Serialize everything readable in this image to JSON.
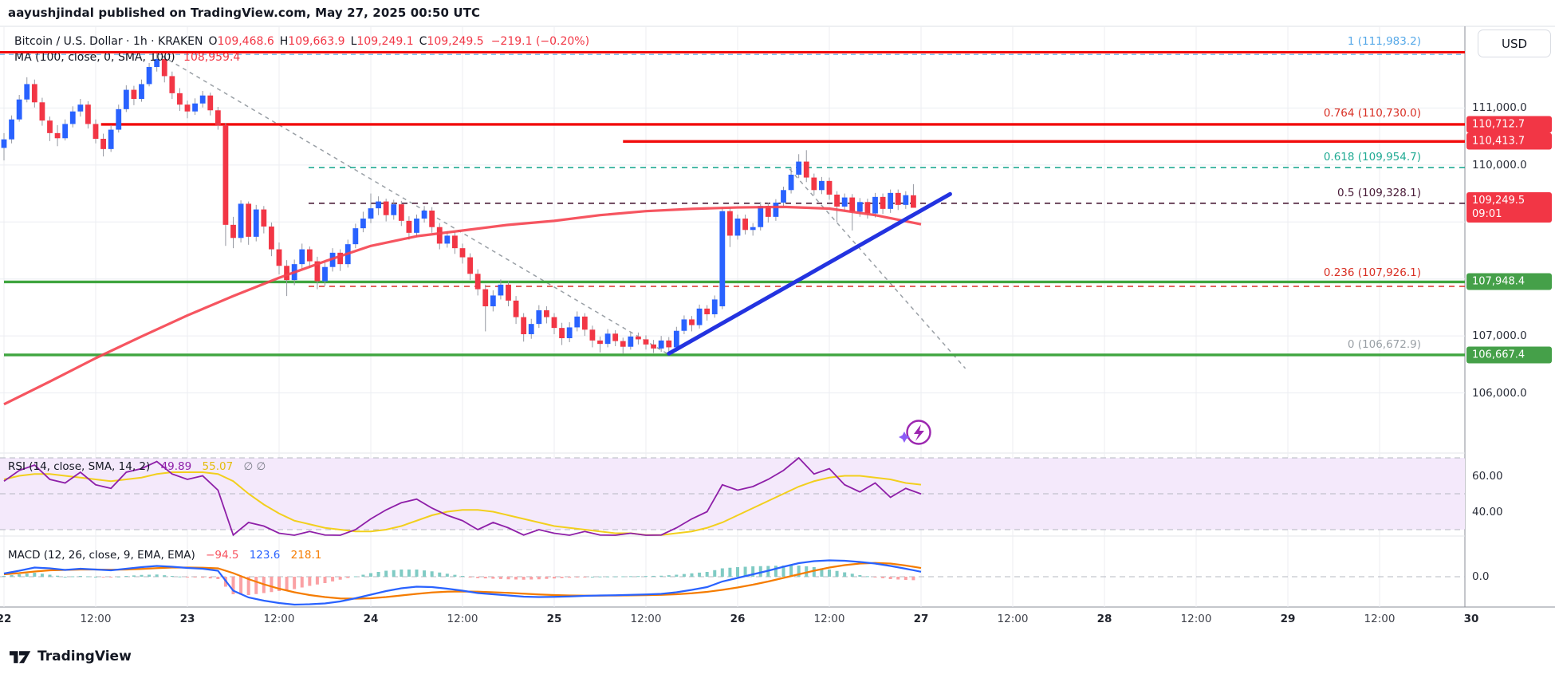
{
  "byline": "aayushjindal published on TradingView.com, May 27, 2025 00:50 UTC",
  "header": {
    "symbol_title": "Bitcoin / U.S. Dollar · 1h · KRAKEN",
    "ohlc": [
      {
        "k": "O",
        "v": "109,468.6"
      },
      {
        "k": "H",
        "v": "109,663.9"
      },
      {
        "k": "L",
        "v": "109,249.1"
      },
      {
        "k": "C",
        "v": "109,249.5"
      }
    ],
    "change": "−219.1 (−0.20%)",
    "ma_label": "MA (100, close, 0, SMA, 100)",
    "ma_value": "108,959.4"
  },
  "currency_button": "USD",
  "logo_text": "TradingView",
  "colors": {
    "up_candle": "#2962ff",
    "down_candle": "#f23645",
    "wick": "#9598a1",
    "ma_line": "#f5434f",
    "ray_red": "#f20c0c",
    "ray_green": "#3fa53f",
    "fib_teal": "#22ab94",
    "fib_dark": "#4a1c38",
    "fib_red_dash": "#d93025",
    "fib_blue_label": "#55a8e8",
    "fib_gray_label": "#9aa0a6",
    "trendline_blue": "#2333e0",
    "rsi_purple": "#8e1fa8",
    "rsi_yellow": "#f2cf1d",
    "rsi_band_fill": "#f4e9fb",
    "macd_blue": "#2962ff",
    "macd_orange": "#f57c00",
    "hist_pos": "#80cbc4",
    "hist_neg": "#faa1a4",
    "badge_red": "#f23645",
    "badge_green": "#45a049",
    "grid": "#eceef2"
  },
  "fib_labels": [
    {
      "text": "1 (111,983.2)",
      "price": 111983.2,
      "color": "#55a8e8"
    },
    {
      "text": "0.764 (110,730.0)",
      "price": 110730.0,
      "color": "#d93025"
    },
    {
      "text": "0.618 (109,954.7)",
      "price": 109954.7,
      "color": "#22ab94"
    },
    {
      "text": "0.5 (109,328.1)",
      "price": 109328.1,
      "color": "#4a1c38"
    },
    {
      "text": "0.236 (107,926.1)",
      "price": 107926.1,
      "color": "#d93025"
    },
    {
      "text": "0 (106,672.9)",
      "price": 106672.9,
      "color": "#9aa0a6"
    }
  ],
  "price_badges": [
    {
      "lines": [
        "110,712.7"
      ],
      "price": 110712.7,
      "bg": "#f23645"
    },
    {
      "lines": [
        "110,413.7"
      ],
      "price": 110413.7,
      "bg": "#f23645"
    },
    {
      "lines": [
        "109,249.5",
        "09:01"
      ],
      "price": 109249.5,
      "bg": "#f23645"
    },
    {
      "lines": [
        "107,948.4"
      ],
      "price": 107948.4,
      "bg": "#45a049"
    },
    {
      "lines": [
        "106,667.4"
      ],
      "price": 106667.4,
      "bg": "#45a049"
    }
  ],
  "y_axis_labels": [
    {
      "text": "111,000.0",
      "price": 111000
    },
    {
      "text": "110,000.0",
      "price": 110000
    },
    {
      "text": "107,000.0",
      "price": 107000
    },
    {
      "text": "106,000.0",
      "price": 106000
    }
  ],
  "timeline": [
    {
      "label": "22",
      "hour": 0,
      "day": true
    },
    {
      "label": "12:00",
      "hour": 12,
      "day": false
    },
    {
      "label": "23",
      "hour": 24,
      "day": true
    },
    {
      "label": "12:00",
      "hour": 36,
      "day": false
    },
    {
      "label": "24",
      "hour": 48,
      "day": true
    },
    {
      "label": "12:00",
      "hour": 60,
      "day": false
    },
    {
      "label": "25",
      "hour": 72,
      "day": true
    },
    {
      "label": "12:00",
      "hour": 84,
      "day": false
    },
    {
      "label": "26",
      "hour": 96,
      "day": true
    },
    {
      "label": "12:00",
      "hour": 108,
      "day": false
    },
    {
      "label": "27",
      "hour": 120,
      "day": true
    },
    {
      "label": "12:00",
      "hour": 132,
      "day": false
    },
    {
      "label": "28",
      "hour": 144,
      "day": true
    },
    {
      "label": "12:00",
      "hour": 156,
      "day": false
    },
    {
      "label": "29",
      "hour": 168,
      "day": true
    },
    {
      "label": "12:00",
      "hour": 180,
      "day": false
    },
    {
      "label": "30",
      "hour": 192,
      "day": true
    }
  ],
  "rsi_panel": {
    "label": "RSI (14, close, SMA, 14, 2)",
    "value": "49.89",
    "signal": "55.07",
    "empty": "∅  ∅",
    "axis": [
      {
        "text": "60.00",
        "rsi": 60
      },
      {
        "text": "40.00",
        "rsi": 40
      }
    ]
  },
  "macd_panel": {
    "label": "MACD (12, 26, close, 9, EMA, EMA)",
    "hist": "−94.5",
    "macd": "123.6",
    "signal": "218.1",
    "axis": [
      {
        "text": "0.0",
        "v": 0
      }
    ]
  },
  "chart_data": {
    "type": "candlestick",
    "title": "Bitcoin / U.S. Dollar",
    "interval": "1h",
    "exchange": "KRAKEN",
    "last": {
      "open": 109468.6,
      "high": 109663.9,
      "low": 109249.1,
      "close": 109249.5,
      "change": -219.1,
      "change_pct": -0.2,
      "countdown": "09:01"
    },
    "x_start": "May 22 2025 00:00",
    "step_hours": 1,
    "y_axis_visible_ticks": [
      111000,
      110000,
      107000,
      106000
    ],
    "grid_prices": [
      111000,
      110000,
      109000,
      108000,
      107000,
      106000
    ],
    "candles_ohlc": [
      [
        110300,
        110560,
        110080,
        110450
      ],
      [
        110450,
        110870,
        110380,
        110800
      ],
      [
        110800,
        111230,
        110760,
        111150
      ],
      [
        111150,
        111540,
        111100,
        111420
      ],
      [
        111420,
        111500,
        111010,
        111100
      ],
      [
        111100,
        111180,
        110690,
        110780
      ],
      [
        110780,
        110850,
        110420,
        110560
      ],
      [
        110560,
        110700,
        110330,
        110470
      ],
      [
        110470,
        110800,
        110430,
        110720
      ],
      [
        110720,
        111030,
        110660,
        110940
      ],
      [
        110940,
        111160,
        110850,
        111060
      ],
      [
        111060,
        111120,
        110640,
        110720
      ],
      [
        110720,
        110800,
        110380,
        110460
      ],
      [
        110460,
        110550,
        110150,
        110280
      ],
      [
        110280,
        110700,
        110230,
        110620
      ],
      [
        110620,
        111060,
        110570,
        110980
      ],
      [
        110980,
        111400,
        110930,
        111320
      ],
      [
        111320,
        111390,
        111050,
        111160
      ],
      [
        111160,
        111500,
        111110,
        111420
      ],
      [
        111420,
        111790,
        111380,
        111720
      ],
      [
        111720,
        111983.2,
        111640,
        111860
      ],
      [
        111860,
        111920,
        111450,
        111560
      ],
      [
        111560,
        111640,
        111160,
        111260
      ],
      [
        111260,
        111350,
        110950,
        111060
      ],
      [
        111060,
        111130,
        110820,
        110940
      ],
      [
        110940,
        111170,
        110880,
        111080
      ],
      [
        111080,
        111300,
        111010,
        111220
      ],
      [
        111220,
        111270,
        110870,
        110960
      ],
      [
        110960,
        111020,
        110620,
        110700
      ],
      [
        110700,
        110740,
        108580,
        108950
      ],
      [
        108950,
        109090,
        108540,
        108720
      ],
      [
        108720,
        109380,
        108640,
        109320
      ],
      [
        109320,
        109360,
        108600,
        108740
      ],
      [
        108740,
        109300,
        108660,
        109220
      ],
      [
        109220,
        109280,
        108800,
        108920
      ],
      [
        108920,
        108990,
        108400,
        108520
      ],
      [
        108520,
        108640,
        108080,
        108230
      ],
      [
        108230,
        108330,
        107700,
        107980
      ],
      [
        107980,
        108340,
        107890,
        108260
      ],
      [
        108260,
        108620,
        108180,
        108520
      ],
      [
        108520,
        108570,
        108190,
        108310
      ],
      [
        108310,
        108390,
        107820,
        107960
      ],
      [
        107960,
        108290,
        107880,
        108210
      ],
      [
        108210,
        108540,
        108130,
        108460
      ],
      [
        108460,
        108520,
        108140,
        108260
      ],
      [
        108260,
        108690,
        108200,
        108610
      ],
      [
        108610,
        108970,
        108540,
        108890
      ],
      [
        108890,
        109180,
        108820,
        109060
      ],
      [
        109060,
        109500,
        108980,
        109240
      ],
      [
        109240,
        109450,
        109120,
        109360
      ],
      [
        109360,
        109410,
        109010,
        109120
      ],
      [
        109120,
        109390,
        109040,
        109310
      ],
      [
        109310,
        109370,
        108930,
        109020
      ],
      [
        109020,
        109100,
        108690,
        108810
      ],
      [
        108810,
        109130,
        108740,
        109060
      ],
      [
        109060,
        109280,
        108990,
        109200
      ],
      [
        109200,
        109260,
        108810,
        108910
      ],
      [
        108910,
        108980,
        108520,
        108620
      ],
      [
        108620,
        108840,
        108550,
        108760
      ],
      [
        108760,
        108820,
        108440,
        108540
      ],
      [
        108540,
        108620,
        108270,
        108380
      ],
      [
        108380,
        108450,
        107980,
        108090
      ],
      [
        108090,
        108170,
        107710,
        107820
      ],
      [
        107820,
        107900,
        107080,
        107520
      ],
      [
        107520,
        107800,
        107430,
        107710
      ],
      [
        107710,
        107990,
        107640,
        107900
      ],
      [
        107900,
        107960,
        107520,
        107620
      ],
      [
        107620,
        107700,
        107210,
        107330
      ],
      [
        107330,
        107400,
        106900,
        107030
      ],
      [
        107030,
        107300,
        106950,
        107210
      ],
      [
        107210,
        107540,
        107140,
        107450
      ],
      [
        107450,
        107520,
        107220,
        107330
      ],
      [
        107330,
        107400,
        107030,
        107140
      ],
      [
        107140,
        107230,
        106840,
        106960
      ],
      [
        106960,
        107240,
        106890,
        107150
      ],
      [
        107150,
        107430,
        107080,
        107340
      ],
      [
        107340,
        107400,
        107000,
        107110
      ],
      [
        107110,
        107180,
        106800,
        106920
      ],
      [
        106920,
        106990,
        106710,
        106860
      ],
      [
        106860,
        107120,
        106800,
        107040
      ],
      [
        107040,
        107100,
        106820,
        106910
      ],
      [
        106910,
        106970,
        106690,
        106810
      ],
      [
        106810,
        107070,
        106760,
        106990
      ],
      [
        106990,
        107060,
        106850,
        106940
      ],
      [
        106940,
        107010,
        106760,
        106850
      ],
      [
        106850,
        106930,
        106700,
        106780
      ],
      [
        106780,
        107000,
        106720,
        106920
      ],
      [
        106920,
        106980,
        106672.9,
        106800
      ],
      [
        106800,
        107160,
        106750,
        107090
      ],
      [
        107090,
        107360,
        107030,
        107290
      ],
      [
        107290,
        107350,
        107080,
        107190
      ],
      [
        107190,
        107550,
        107130,
        107480
      ],
      [
        107480,
        107540,
        107270,
        107380
      ],
      [
        107380,
        107710,
        107320,
        107640
      ],
      [
        107520,
        109260,
        107470,
        109190
      ],
      [
        109190,
        109250,
        108560,
        108760
      ],
      [
        108760,
        109130,
        108690,
        109060
      ],
      [
        109060,
        109130,
        108780,
        108860
      ],
      [
        108860,
        108980,
        108760,
        108910
      ],
      [
        108910,
        109350,
        108850,
        109280
      ],
      [
        109280,
        109340,
        108990,
        109090
      ],
      [
        109090,
        109400,
        109020,
        109340
      ],
      [
        109340,
        109620,
        109280,
        109560
      ],
      [
        109560,
        109960,
        109500,
        109830
      ],
      [
        109830,
        110190,
        109770,
        110060
      ],
      [
        110060,
        110260,
        109700,
        109780
      ],
      [
        109780,
        109850,
        109470,
        109560
      ],
      [
        109560,
        109790,
        109490,
        109720
      ],
      [
        109720,
        109780,
        109390,
        109480
      ],
      [
        109480,
        109540,
        109000,
        109270
      ],
      [
        109270,
        109500,
        109190,
        109430
      ],
      [
        109430,
        109490,
        108850,
        109180
      ],
      [
        109180,
        109420,
        109090,
        109350
      ],
      [
        109350,
        109410,
        109060,
        109150
      ],
      [
        109150,
        109510,
        109080,
        109440
      ],
      [
        109440,
        109500,
        109140,
        109230
      ],
      [
        109230,
        109570,
        109160,
        109510
      ],
      [
        109510,
        109570,
        109210,
        109300
      ],
      [
        109300,
        109540,
        109230,
        109470
      ],
      [
        109468.6,
        109663.9,
        109249.1,
        109249.5
      ]
    ],
    "ma100": {
      "value": 108959.4,
      "samples_every_6h": [
        105800,
        106200,
        106610,
        106990,
        107360,
        107700,
        108020,
        108310,
        108580,
        108750,
        108850,
        108950,
        109020,
        109120,
        109190,
        109230,
        109255,
        109265,
        109235,
        109120,
        108959.4
      ]
    },
    "fib_retracement": {
      "anchor_high": {
        "hour": 19.8,
        "price": 111983.2
      },
      "anchor_low": {
        "hour": 87,
        "price": 106672.9
      },
      "levels": [
        {
          "level": 1,
          "price": 111983.2
        },
        {
          "level": 0.764,
          "price": 110730.0
        },
        {
          "level": 0.618,
          "price": 109954.7
        },
        {
          "level": 0.5,
          "price": 109328.1
        },
        {
          "level": 0.236,
          "price": 107926.1
        },
        {
          "level": 0,
          "price": 106672.9
        }
      ]
    },
    "horizontal_rays": [
      {
        "price": 110712.7,
        "from_hour": 12.7,
        "style": "solid-red"
      },
      {
        "price": 110413.7,
        "from_hour": 81,
        "style": "solid-red"
      },
      {
        "price": 107948.4,
        "from_hour": 0,
        "style": "solid-green"
      },
      {
        "price": 106667.4,
        "from_hour": 0,
        "style": "solid-green"
      }
    ],
    "trendline": {
      "h1": 87,
      "p1": 106690,
      "h2": 123.8,
      "p2": 109490
    },
    "dashed_diagonal_2": {
      "h1": 102.8,
      "p1": 109930,
      "h2": 125.8,
      "p2": 106430
    },
    "rsi": {
      "value": 49.89,
      "signal_value": 55.07,
      "band": [
        70,
        30
      ],
      "mid": 50,
      "samples_every_2h": [
        57,
        63,
        66,
        58,
        56,
        62,
        55,
        53,
        62,
        64,
        68,
        61,
        58,
        60,
        52,
        27,
        34,
        32,
        28,
        26.5,
        29,
        27,
        26.5,
        30,
        36,
        41,
        45,
        47,
        42,
        38,
        35,
        30,
        34,
        31,
        27,
        30,
        28,
        26.5,
        29,
        27,
        26.5,
        28,
        26.5,
        27,
        31,
        36,
        40,
        55,
        52,
        54,
        58,
        63,
        70,
        61,
        64,
        55,
        51,
        56,
        48,
        53,
        49.89
      ],
      "signal_samples_every_2h": [
        58,
        60,
        61,
        61,
        60,
        59,
        58,
        57,
        58,
        59,
        61,
        62,
        62,
        62,
        61,
        57,
        50,
        44,
        39,
        35,
        33,
        31,
        30,
        29,
        29,
        30,
        32,
        35,
        38,
        40,
        41,
        41,
        40,
        38,
        36,
        34,
        32,
        31,
        30,
        29,
        28,
        28,
        27,
        27,
        28,
        29,
        31,
        34,
        38,
        42,
        46,
        50,
        54,
        57,
        59,
        60,
        60,
        59,
        58,
        56,
        55.07
      ]
    },
    "macd": {
      "hist_value": -94.5,
      "macd_value": 123.6,
      "signal_value": 218.1,
      "macd_samples_every_2h": [
        80,
        150,
        230,
        210,
        170,
        200,
        180,
        160,
        200,
        240,
        270,
        250,
        220,
        200,
        150,
        -350,
        -520,
        -600,
        -660,
        -700,
        -690,
        -670,
        -620,
        -540,
        -450,
        -360,
        -290,
        -250,
        -260,
        -300,
        -350,
        -410,
        -440,
        -470,
        -500,
        -510,
        -505,
        -495,
        -480,
        -470,
        -465,
        -455,
        -445,
        -430,
        -390,
        -330,
        -260,
        -120,
        -30,
        60,
        150,
        250,
        340,
        390,
        410,
        400,
        370,
        330,
        270,
        200,
        123.6
      ],
      "signal_samples_every_2h": [
        60,
        90,
        130,
        160,
        170,
        180,
        180,
        175,
        180,
        195,
        215,
        230,
        230,
        225,
        210,
        90,
        -60,
        -190,
        -300,
        -390,
        -460,
        -510,
        -545,
        -550,
        -540,
        -510,
        -470,
        -430,
        -395,
        -375,
        -370,
        -375,
        -390,
        -405,
        -425,
        -445,
        -460,
        -470,
        -475,
        -475,
        -472,
        -468,
        -462,
        -455,
        -440,
        -415,
        -380,
        -330,
        -270,
        -200,
        -120,
        -30,
        60,
        150,
        230,
        290,
        330,
        345,
        330,
        280,
        218.1
      ]
    }
  }
}
